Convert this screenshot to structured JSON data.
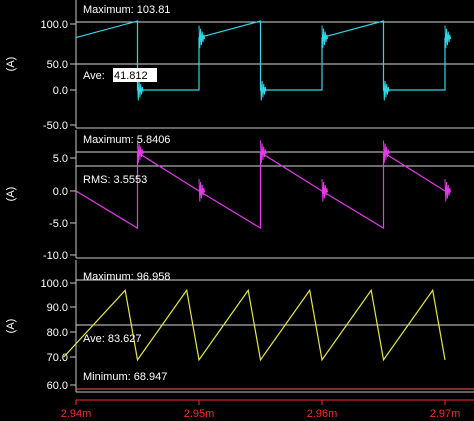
{
  "x_axis": {
    "ticks": [
      {
        "value": 0.00294,
        "label": "2.94m"
      },
      {
        "value": 0.00295,
        "label": "2.95m"
      },
      {
        "value": 0.00296,
        "label": "2.96m"
      },
      {
        "value": 0.00297,
        "label": "2.97m"
      }
    ],
    "color": "#ff2a2a"
  },
  "panels": [
    {
      "id": "current-1",
      "unit": "(A)",
      "color": "#33d6e6",
      "yticks": [
        "100.0",
        "50.0",
        "0.0",
        "-50.0"
      ],
      "ytick_values": [
        100,
        50,
        0,
        -50
      ],
      "ylim": [
        -50,
        108
      ],
      "annotations": [
        {
          "name": "maximum-label",
          "text": "Maximum: 103.81",
          "ref_value": 103.81,
          "highlight": false
        },
        {
          "name": "ave-label-prefix",
          "text": "Ave: ",
          "ref_value": 41.812,
          "highlight": false
        },
        {
          "name": "ave-label-value",
          "text": "41.812",
          "highlight": true
        }
      ]
    },
    {
      "id": "current-2",
      "unit": "(A)",
      "color": "#e23ce6",
      "yticks": [
        "5.0",
        "0.0",
        "-5.0",
        "-10.0"
      ],
      "ytick_values": [
        5,
        0,
        -5,
        -10
      ],
      "ylim": [
        -10,
        7
      ],
      "annotations": [
        {
          "name": "maximum-label",
          "text": "Maximum: 5.8406",
          "ref_value": 5.8406,
          "highlight": false
        },
        {
          "name": "rms-label",
          "text": "RMS: 3.5553",
          "ref_value": 3.5553,
          "highlight": false
        }
      ]
    },
    {
      "id": "current-3",
      "unit": "(A)",
      "color": "#e6e64a",
      "yticks": [
        "100.0",
        "90.0",
        "80.0",
        "70.0",
        "60.0"
      ],
      "ytick_values": [
        100,
        90,
        80,
        70,
        60
      ],
      "ylim": [
        60,
        101
      ],
      "annotations": [
        {
          "name": "maximum-label",
          "text": "Maximum: 96.958",
          "ref_value": 96.958,
          "highlight": false
        },
        {
          "name": "ave-label",
          "text": "Ave: 83.627",
          "ref_value": 83.627,
          "highlight": false
        },
        {
          "name": "minimum-label",
          "text": "Minimum: 68.947",
          "ref_value": 68.947,
          "highlight": false
        }
      ]
    }
  ],
  "chart_data": [
    {
      "type": "line",
      "ylabel": "(A)",
      "ylim": [
        -50,
        108
      ],
      "series": [
        {
          "x": [
            0.00294,
            0.002945,
            0.002945,
            0.00295,
            0.00295,
            0.002955,
            0.002955,
            0.00296,
            0.00296,
            0.002965,
            0.002965,
            0.00297,
            0.00297
          ],
          "y": [
            83,
            103.81,
            0,
            0,
            83,
            103.81,
            0,
            0,
            83,
            103.81,
            0,
            0,
            83
          ]
        }
      ]
    },
    {
      "type": "line",
      "ylabel": "(A)",
      "ylim": [
        -10,
        7
      ],
      "series": [
        {
          "x": [
            0.00294,
            0.002945,
            0.002945,
            0.00295,
            0.00295,
            0.002955,
            0.002955,
            0.00296,
            0.00296,
            0.002965,
            0.002965,
            0.00297,
            0.00297
          ],
          "y": [
            0,
            -5.8,
            5.8406,
            0,
            0,
            -5.8,
            5.8406,
            0,
            0,
            -5.8,
            5.8406,
            0,
            0
          ]
        }
      ]
    },
    {
      "type": "line",
      "ylabel": "(A)",
      "ylim": [
        60,
        101
      ],
      "series": [
        {
          "x": [
            0.002939,
            0.002944,
            0.002945,
            0.002949,
            0.00295,
            0.002954,
            0.002955,
            0.002959,
            0.00296,
            0.002964,
            0.002965,
            0.002969,
            0.00297
          ],
          "y": [
            70,
            96.958,
            68.947,
            96.958,
            68.947,
            96.958,
            68.947,
            96.958,
            68.947,
            96.958,
            68.947,
            96.958,
            68.947
          ]
        }
      ]
    }
  ]
}
